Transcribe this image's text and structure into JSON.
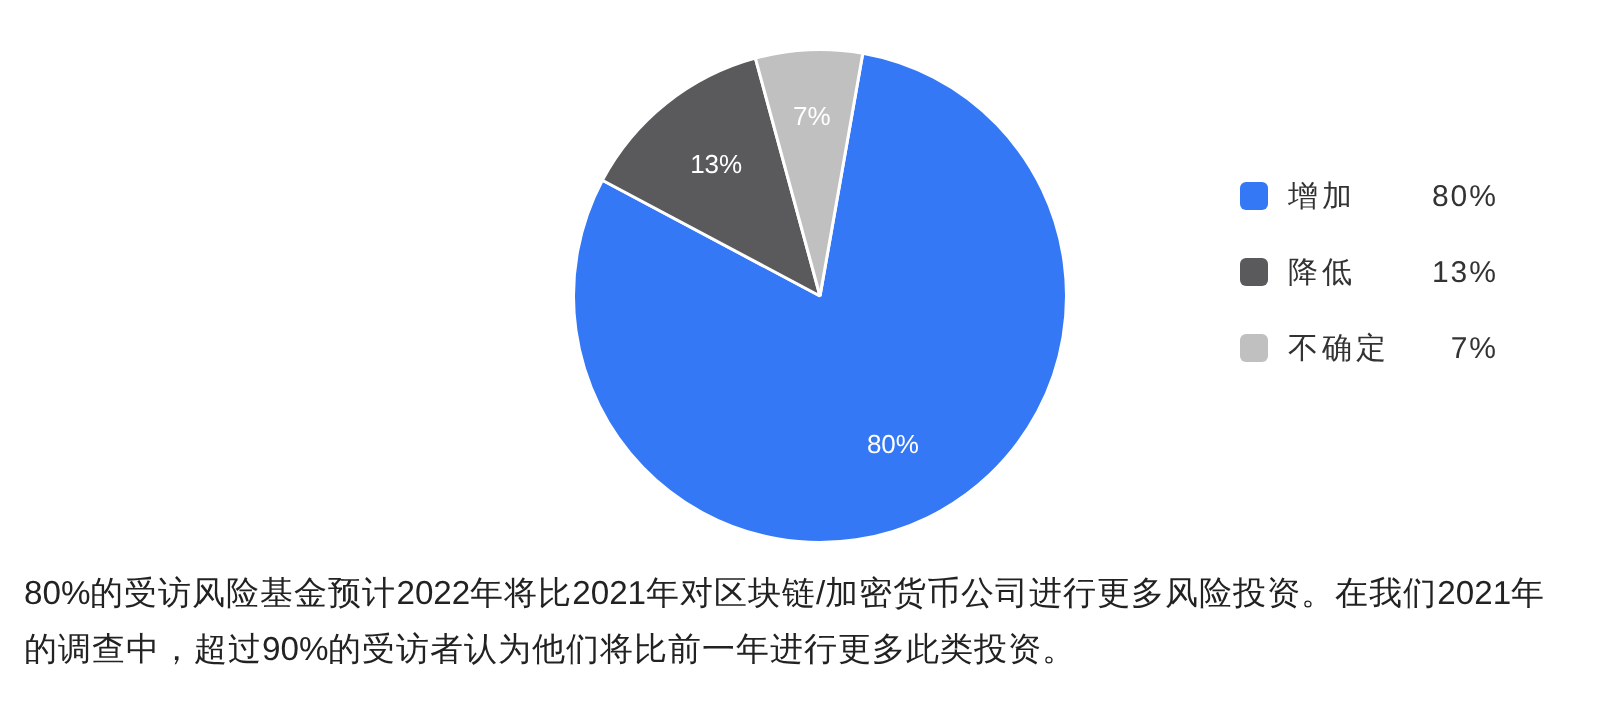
{
  "chart_data": {
    "type": "pie",
    "categories": [
      "增加",
      "降低",
      "不确定"
    ],
    "values": [
      80,
      13,
      7
    ],
    "colors": [
      "#3478f6",
      "#5a5a5c",
      "#c0c0c0"
    ],
    "value_labels": [
      "80%",
      "13%",
      "7%"
    ],
    "legend": "right",
    "annotations": [
      "80%的受访风险基金预计2022年将比2021年对区块链/加密货币公司进行更多风险投资。在我们2021年的调查中，超过90%的受访者认为他们将比前一年进行更多此类投资。"
    ]
  }
}
